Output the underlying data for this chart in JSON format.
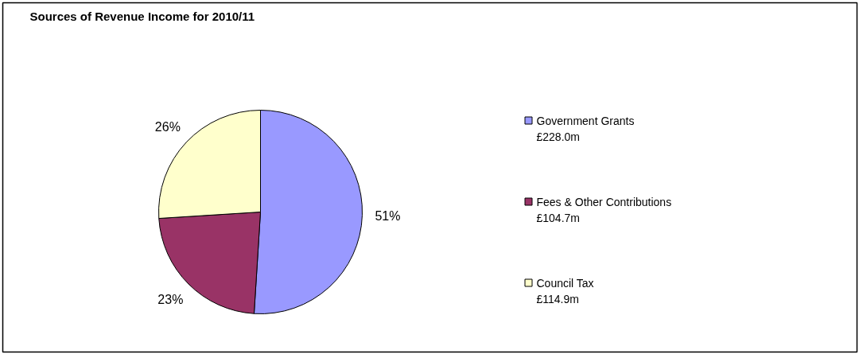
{
  "chart_data": {
    "type": "pie",
    "title": "Sources of Revenue Income for 2010/11",
    "categories": [
      "Government Grants\n£228.0m",
      "Fees & Other Contributions\n£104.7m",
      "Council Tax\n£114.9m"
    ],
    "values": [
      51,
      23,
      26
    ],
    "colors": [
      "#9999ff",
      "#993366",
      "#ffffcc"
    ],
    "value_labels": [
      "51%",
      "23%",
      "26%"
    ],
    "legend": "right"
  }
}
